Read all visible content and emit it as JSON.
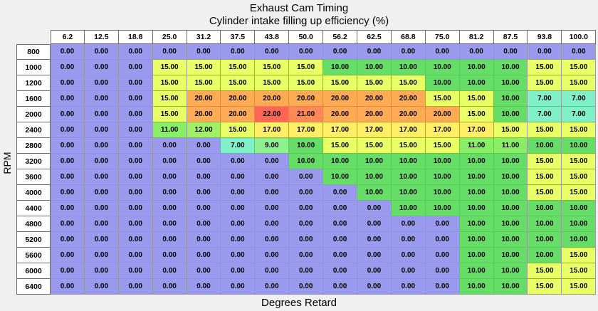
{
  "title": "Exhaust Cam Timing",
  "subtitle": "Cylinder intake filling up efficiency (%)",
  "x_axis_label": "Degrees Retard",
  "y_axis_label": "RPM (RPM)",
  "columns": [
    "6.2",
    "12.5",
    "18.8",
    "25.0",
    "31.2",
    "37.5",
    "43.8",
    "50.0",
    "56.2",
    "62.5",
    "68.8",
    "75.0",
    "81.2",
    "87.5",
    "93.8",
    "100.0"
  ],
  "rows": [
    {
      "rpm": "800",
      "values": [
        "0.00",
        "0.00",
        "0.00",
        "0.00",
        "0.00",
        "0.00",
        "0.00",
        "0.00",
        "0.00",
        "0.00",
        "0.00",
        "0.00",
        "0.00",
        "0.00",
        "0.00",
        "0.00"
      ]
    },
    {
      "rpm": "1000",
      "values": [
        "0.00",
        "0.00",
        "0.00",
        "15.00",
        "15.00",
        "15.00",
        "15.00",
        "15.00",
        "10.00",
        "10.00",
        "10.00",
        "10.00",
        "10.00",
        "10.00",
        "15.00",
        "15.00"
      ]
    },
    {
      "rpm": "1200",
      "values": [
        "0.00",
        "0.00",
        "0.00",
        "15.00",
        "15.00",
        "15.00",
        "15.00",
        "15.00",
        "15.00",
        "15.00",
        "15.00",
        "10.00",
        "10.00",
        "10.00",
        "15.00",
        "15.00"
      ]
    },
    {
      "rpm": "1600",
      "values": [
        "0.00",
        "0.00",
        "0.00",
        "15.00",
        "20.00",
        "20.00",
        "20.00",
        "20.00",
        "20.00",
        "20.00",
        "20.00",
        "15.00",
        "15.00",
        "10.00",
        "7.00",
        "7.00"
      ]
    },
    {
      "rpm": "2000",
      "values": [
        "0.00",
        "0.00",
        "0.00",
        "15.00",
        "20.00",
        "20.00",
        "22.00",
        "21.00",
        "20.00",
        "20.00",
        "20.00",
        "20.00",
        "15.00",
        "10.00",
        "7.00",
        "7.00"
      ]
    },
    {
      "rpm": "2400",
      "values": [
        "0.00",
        "0.00",
        "0.00",
        "11.00",
        "12.00",
        "15.00",
        "17.00",
        "17.00",
        "17.00",
        "17.00",
        "17.00",
        "17.00",
        "17.00",
        "15.00",
        "15.00",
        "15.00"
      ]
    },
    {
      "rpm": "2800",
      "values": [
        "0.00",
        "0.00",
        "0.00",
        "0.00",
        "0.00",
        "7.00",
        "9.00",
        "10.00",
        "15.00",
        "15.00",
        "15.00",
        "15.00",
        "11.00",
        "11.00",
        "10.00",
        "10.00"
      ]
    },
    {
      "rpm": "3200",
      "values": [
        "0.00",
        "0.00",
        "0.00",
        "0.00",
        "0.00",
        "0.00",
        "0.00",
        "10.00",
        "10.00",
        "10.00",
        "10.00",
        "10.00",
        "10.00",
        "10.00",
        "15.00",
        "15.00"
      ]
    },
    {
      "rpm": "3600",
      "values": [
        "0.00",
        "0.00",
        "0.00",
        "0.00",
        "0.00",
        "0.00",
        "0.00",
        "0.00",
        "10.00",
        "10.00",
        "10.00",
        "10.00",
        "10.00",
        "10.00",
        "15.00",
        "15.00"
      ]
    },
    {
      "rpm": "4000",
      "values": [
        "0.00",
        "0.00",
        "0.00",
        "0.00",
        "0.00",
        "0.00",
        "0.00",
        "0.00",
        "0.00",
        "10.00",
        "10.00",
        "10.00",
        "10.00",
        "10.00",
        "15.00",
        "15.00"
      ]
    },
    {
      "rpm": "4400",
      "values": [
        "0.00",
        "0.00",
        "0.00",
        "0.00",
        "0.00",
        "0.00",
        "0.00",
        "0.00",
        "0.00",
        "0.00",
        "10.00",
        "10.00",
        "10.00",
        "10.00",
        "10.00",
        "10.00"
      ]
    },
    {
      "rpm": "4800",
      "values": [
        "0.00",
        "0.00",
        "0.00",
        "0.00",
        "0.00",
        "0.00",
        "0.00",
        "0.00",
        "0.00",
        "0.00",
        "0.00",
        "0.00",
        "10.00",
        "10.00",
        "10.00",
        "10.00"
      ]
    },
    {
      "rpm": "5200",
      "values": [
        "0.00",
        "0.00",
        "0.00",
        "0.00",
        "0.00",
        "0.00",
        "0.00",
        "0.00",
        "0.00",
        "0.00",
        "0.00",
        "0.00",
        "10.00",
        "10.00",
        "10.00",
        "10.00"
      ]
    },
    {
      "rpm": "5600",
      "values": [
        "0.00",
        "0.00",
        "0.00",
        "0.00",
        "0.00",
        "0.00",
        "0.00",
        "0.00",
        "0.00",
        "0.00",
        "0.00",
        "0.00",
        "10.00",
        "10.00",
        "10.00",
        "15.00"
      ]
    },
    {
      "rpm": "6000",
      "values": [
        "0.00",
        "0.00",
        "0.00",
        "0.00",
        "0.00",
        "0.00",
        "0.00",
        "0.00",
        "0.00",
        "0.00",
        "0.00",
        "0.00",
        "10.00",
        "10.00",
        "15.00",
        "15.00"
      ]
    },
    {
      "rpm": "6400",
      "values": [
        "0.00",
        "0.00",
        "0.00",
        "0.00",
        "0.00",
        "0.00",
        "0.00",
        "0.00",
        "0.00",
        "0.00",
        "0.00",
        "0.00",
        "10.00",
        "10.00",
        "15.00",
        "15.00"
      ]
    }
  ],
  "color_scale": {
    "0": "#9999ee",
    "7": "#80f0c8",
    "9": "#8ff08f",
    "10": "#66dd66",
    "11": "#88ee66",
    "12": "#a0f066",
    "15": "#e8ff66",
    "17": "#ffee66",
    "20": "#ffaa55",
    "21": "#ff8855",
    "22": "#ff6655"
  }
}
